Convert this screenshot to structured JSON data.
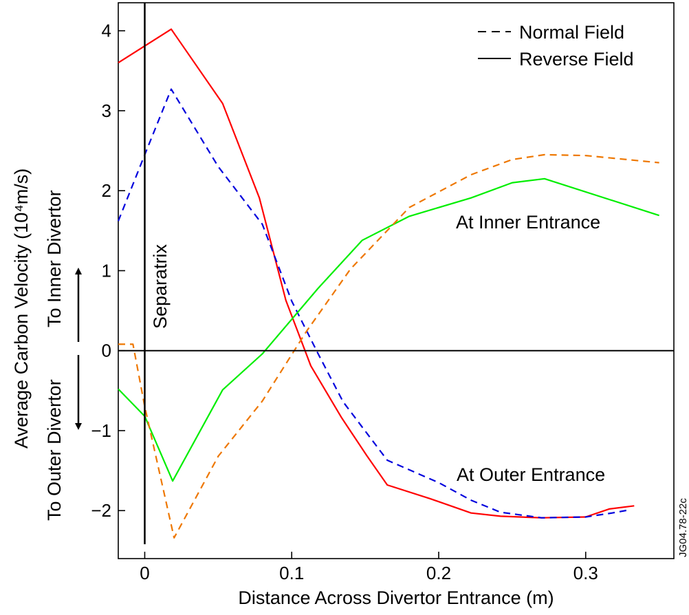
{
  "chart_data": {
    "type": "line",
    "xlabel": "Distance Across Divertor Entrance (m)",
    "ylabel": "Average Carbon Velocity (10⁴m/s)",
    "xlim": [
      -0.018,
      0.36
    ],
    "ylim": [
      -2.6,
      4.35
    ],
    "x_ticks": [
      0,
      0.1,
      0.2,
      0.3
    ],
    "x_tick_labels": [
      "0",
      "0.1",
      "0.2",
      "0.3"
    ],
    "y_ticks": [
      -2,
      -1,
      0,
      1,
      2,
      3,
      4
    ],
    "y_tick_labels": [
      "−2",
      "−1",
      "0",
      "1",
      "2",
      "3",
      "4"
    ],
    "grid": false,
    "legend": {
      "position": "top-right",
      "entries": [
        {
          "label": "Normal Field",
          "style": "dashed"
        },
        {
          "label": "Reverse Field",
          "style": "solid"
        }
      ]
    },
    "annotations": {
      "separatrix": "Separatrix",
      "inner_entrance": "At Inner Entrance",
      "outer_entrance": "At Outer Entrance",
      "to_inner": "To Inner Divertor",
      "to_outer": "To Outer Divertor",
      "ref_id": "JG04.78-22c"
    },
    "separatrix_x": 0,
    "series": [
      {
        "color": "#ff0000",
        "style": "solid",
        "x": [
          -0.018,
          0.018,
          0.053,
          0.078,
          0.096,
          0.113,
          0.134,
          0.151,
          0.165,
          0.194,
          0.222,
          0.242,
          0.27,
          0.3,
          0.316,
          0.333
        ],
        "y": [
          3.6,
          4.02,
          3.09,
          1.91,
          0.63,
          -0.19,
          -0.84,
          -1.31,
          -1.68,
          -1.85,
          -2.03,
          -2.07,
          -2.09,
          -2.08,
          -1.98,
          -1.94
        ]
      },
      {
        "color": "#0000dd",
        "style": "dashed",
        "x": [
          -0.018,
          0.0,
          0.018,
          0.05,
          0.08,
          0.1,
          0.118,
          0.135,
          0.165,
          0.2,
          0.222,
          0.242,
          0.27,
          0.3,
          0.318,
          0.33
        ],
        "y": [
          1.62,
          2.45,
          3.27,
          2.3,
          1.58,
          0.62,
          -0.04,
          -0.64,
          -1.37,
          -1.65,
          -1.87,
          -2.02,
          -2.09,
          -2.08,
          -2.03,
          -1.99
        ]
      },
      {
        "color": "#00ee00",
        "style": "solid",
        "x": [
          -0.018,
          0.0,
          0.019,
          0.053,
          0.08,
          0.118,
          0.148,
          0.18,
          0.222,
          0.25,
          0.272,
          0.35
        ],
        "y": [
          -0.48,
          -0.82,
          -1.63,
          -0.49,
          -0.04,
          0.78,
          1.38,
          1.68,
          1.91,
          2.1,
          2.15,
          1.69
        ]
      },
      {
        "color": "#ee7700",
        "style": "dashed",
        "x": [
          -0.018,
          -0.008,
          0.0,
          0.02,
          0.05,
          0.08,
          0.11,
          0.14,
          0.18,
          0.222,
          0.25,
          0.272,
          0.3,
          0.35
        ],
        "y": [
          0.08,
          0.08,
          -0.7,
          -2.34,
          -1.32,
          -0.63,
          0.24,
          1.02,
          1.79,
          2.2,
          2.39,
          2.45,
          2.44,
          2.35
        ]
      }
    ]
  }
}
